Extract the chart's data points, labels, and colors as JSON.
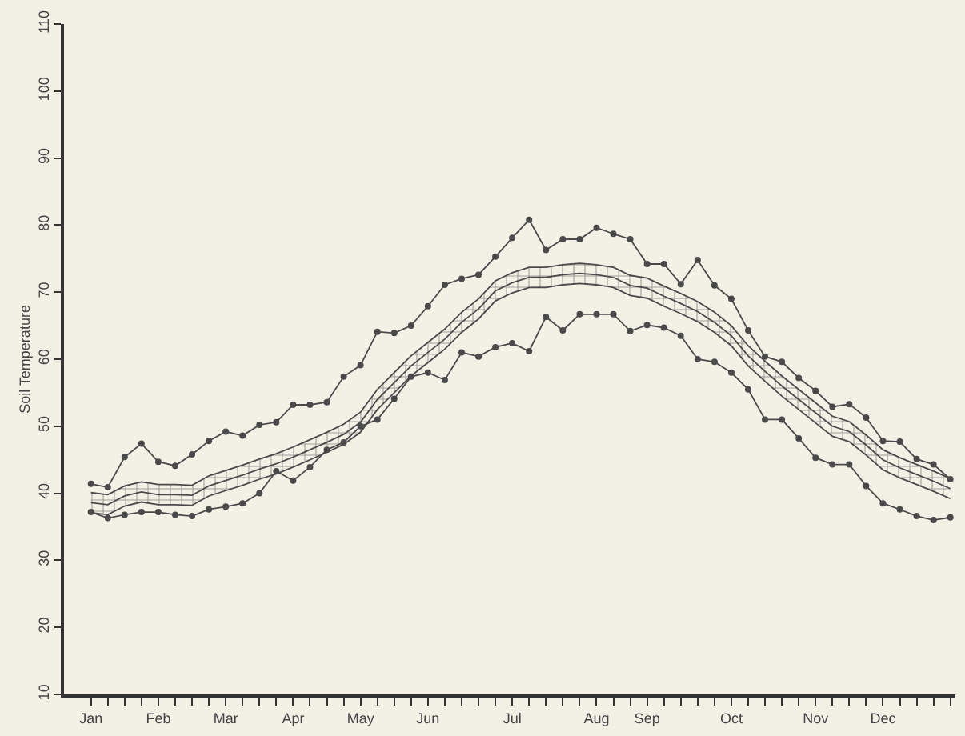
{
  "chart_data": {
    "type": "line",
    "ylabel": "Soil Temperature",
    "categories": [
      "Jan",
      null,
      null,
      null,
      "Feb",
      null,
      null,
      null,
      "Mar",
      null,
      null,
      null,
      "Apr",
      null,
      null,
      null,
      "May",
      null,
      null,
      null,
      "Jun",
      null,
      null,
      null,
      null,
      "Jul",
      null,
      null,
      null,
      null,
      "Aug",
      null,
      null,
      "Sep",
      null,
      null,
      null,
      null,
      "Oct",
      null,
      null,
      null,
      null,
      "Nov",
      null,
      null,
      null,
      "Dec",
      null,
      null,
      null,
      null
    ],
    "series": [
      {
        "color": "#4a4a4a",
        "marker": "circle",
        "values": [
          41.4,
          40.9,
          45.4,
          47.4,
          44.7,
          44.1,
          45.8,
          47.8,
          49.2,
          48.6,
          50.2,
          50.6,
          53.2,
          53.2,
          53.6,
          57.4,
          59.1,
          64.1,
          63.9,
          65.0,
          67.9,
          71.1,
          72.0,
          72.6,
          75.3,
          78.1,
          80.8,
          76.3,
          77.9,
          77.9,
          79.6,
          78.7,
          77.9,
          74.2,
          74.2,
          71.2,
          74.8,
          71.0,
          69.0,
          64.3,
          60.4,
          59.6,
          57.2,
          55.3,
          52.9,
          53.3,
          51.3,
          47.8,
          47.7,
          45.1,
          44.3,
          42.1
        ]
      },
      {
        "color": "#4a4a4a",
        "marker": "none",
        "values": [
          38.6,
          38.3,
          39.6,
          40.2,
          39.8,
          39.8,
          39.7,
          41.1,
          41.9,
          42.7,
          43.6,
          44.4,
          45.4,
          46.5,
          47.6,
          48.8,
          50.6,
          54.0,
          56.5,
          59.0,
          61.0,
          63.0,
          65.5,
          67.5,
          70.2,
          71.4,
          72.2,
          72.2,
          72.6,
          72.8,
          72.6,
          72.2,
          71.0,
          70.6,
          69.4,
          68.3,
          67.1,
          65.5,
          63.5,
          60.5,
          58.2,
          56.0,
          54.0,
          52.0,
          50.0,
          49.2,
          47.2,
          45.0,
          43.8,
          42.8,
          41.8,
          40.7
        ],
        "lower": [
          37.1,
          36.8,
          38.1,
          38.7,
          38.3,
          38.3,
          38.2,
          39.6,
          40.4,
          41.2,
          42.1,
          42.9,
          43.9,
          45.0,
          46.1,
          47.3,
          49.1,
          52.5,
          55.0,
          57.5,
          59.5,
          61.5,
          64.0,
          66.0,
          68.7,
          69.9,
          70.7,
          70.7,
          71.1,
          71.3,
          71.1,
          70.7,
          69.5,
          69.1,
          67.9,
          66.8,
          65.6,
          64.0,
          62.0,
          59.0,
          56.7,
          54.5,
          52.5,
          50.5,
          48.5,
          47.7,
          45.7,
          43.5,
          42.3,
          41.3,
          40.3,
          39.2
        ],
        "upper": [
          40.1,
          39.8,
          41.1,
          41.7,
          41.3,
          41.3,
          41.2,
          42.6,
          43.4,
          44.2,
          45.1,
          45.9,
          46.9,
          48.0,
          49.1,
          50.3,
          52.1,
          55.5,
          58.0,
          60.5,
          62.5,
          64.5,
          67.0,
          69.0,
          71.7,
          72.9,
          73.7,
          73.7,
          74.1,
          74.3,
          74.1,
          73.7,
          72.5,
          72.1,
          70.9,
          69.8,
          68.6,
          67.0,
          65.0,
          62.0,
          59.7,
          57.5,
          55.5,
          53.5,
          51.5,
          50.7,
          48.7,
          46.5,
          45.3,
          44.3,
          43.3,
          42.2
        ]
      },
      {
        "color": "#4a4a4a",
        "marker": "none",
        "values": [
          37.1,
          36.8,
          38.1,
          38.7,
          38.3,
          38.3,
          38.2,
          39.6,
          40.4,
          41.2,
          42.1,
          42.9,
          43.9,
          45.0,
          46.1,
          47.3,
          49.1,
          52.5,
          55.0,
          57.5,
          59.5,
          61.5,
          64.0,
          66.0,
          68.7,
          69.9,
          70.7,
          70.7,
          71.1,
          71.3,
          71.1,
          70.7,
          69.5,
          69.1,
          67.9,
          66.8,
          65.6,
          64.0,
          62.0,
          59.0,
          56.7,
          54.5,
          52.5,
          50.5,
          48.5,
          47.7,
          45.7,
          43.5,
          42.3,
          41.3,
          40.3,
          39.2
        ]
      },
      {
        "color": "#4a4a4a",
        "marker": "none",
        "values": [
          40.1,
          39.8,
          41.1,
          41.7,
          41.3,
          41.3,
          41.2,
          42.6,
          43.4,
          44.2,
          45.1,
          45.9,
          46.9,
          48.0,
          49.1,
          50.3,
          52.1,
          55.5,
          58.0,
          60.5,
          62.5,
          64.5,
          67.0,
          69.0,
          71.7,
          72.9,
          73.7,
          73.7,
          74.1,
          74.3,
          74.1,
          73.7,
          72.5,
          72.1,
          70.9,
          69.8,
          68.6,
          67.0,
          65.0,
          62.0,
          59.7,
          57.5,
          55.5,
          53.5,
          51.5,
          50.7,
          48.7,
          46.5,
          45.3,
          44.3,
          43.3,
          42.2
        ]
      },
      {
        "color": "#4a4a4a",
        "marker": "circle",
        "values": [
          37.2,
          36.3,
          36.8,
          37.2,
          37.2,
          36.8,
          36.6,
          37.6,
          38.0,
          38.5,
          40.0,
          43.3,
          41.9,
          43.9,
          46.5,
          47.6,
          50.0,
          51.0,
          54.1,
          57.4,
          58.0,
          56.9,
          61.0,
          60.4,
          61.8,
          62.4,
          61.2,
          66.3,
          64.3,
          66.7,
          66.7,
          66.7,
          64.2,
          65.1,
          64.7,
          63.5,
          60.0,
          59.6,
          58.0,
          55.5,
          51.0,
          51.0,
          48.2,
          45.3,
          44.3,
          44.3,
          41.1,
          38.5,
          37.6,
          36.6,
          36.0,
          36.4
        ]
      }
    ],
    "ylim": [
      10,
      110
    ],
    "yticks": [
      10,
      20,
      30,
      40,
      50,
      60,
      70,
      80,
      90,
      100,
      110
    ],
    "grid": false,
    "line_style": "solid"
  }
}
